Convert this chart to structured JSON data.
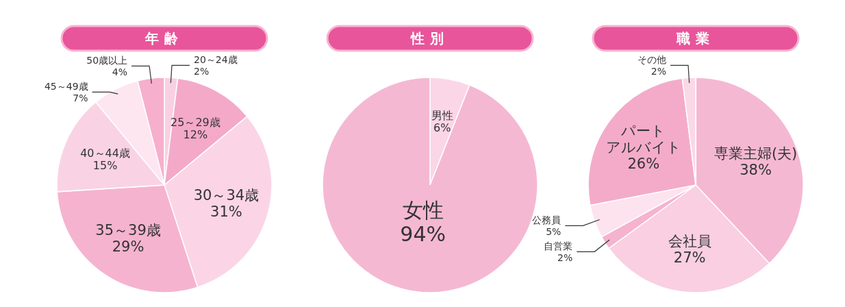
{
  "chart_data": [
    {
      "type": "pie",
      "title": "年齢",
      "categories": [
        "20～24歳",
        "25～29歳",
        "30～34歳",
        "35～39歳",
        "40～44歳",
        "45～49歳",
        "50歳以上"
      ],
      "values": [
        2,
        12,
        31,
        29,
        15,
        7,
        4
      ],
      "value_labels": [
        "2%",
        "12%",
        "31%",
        "29%",
        "15%",
        "7%",
        "4%"
      ],
      "colors": [
        "#f9d0e2",
        "#f4a9c9",
        "#fbd5e6",
        "#f5b3cf",
        "#f9d3e4",
        "#fde6ef",
        "#f6afcc"
      ]
    },
    {
      "type": "pie",
      "title": "性別",
      "categories": [
        "男性",
        "女性"
      ],
      "values": [
        6,
        94
      ],
      "value_labels": [
        "6%",
        "94%"
      ],
      "colors": [
        "#fbd6e6",
        "#f5b8d3"
      ]
    },
    {
      "type": "pie",
      "title": "職業",
      "categories": [
        "専業主婦(夫)",
        "会社員",
        "自営業",
        "公務員",
        "パートアルバイト",
        "その他"
      ],
      "values": [
        38,
        27,
        2,
        5,
        26,
        2
      ],
      "value_labels": [
        "38%",
        "27%",
        "2%",
        "5%",
        "26%",
        "2%"
      ],
      "colors": [
        "#f5b8d3",
        "#f9cfe1",
        "#f5b3cf",
        "#fde3ee",
        "#f4abca",
        "#fbd8e7"
      ]
    }
  ]
}
